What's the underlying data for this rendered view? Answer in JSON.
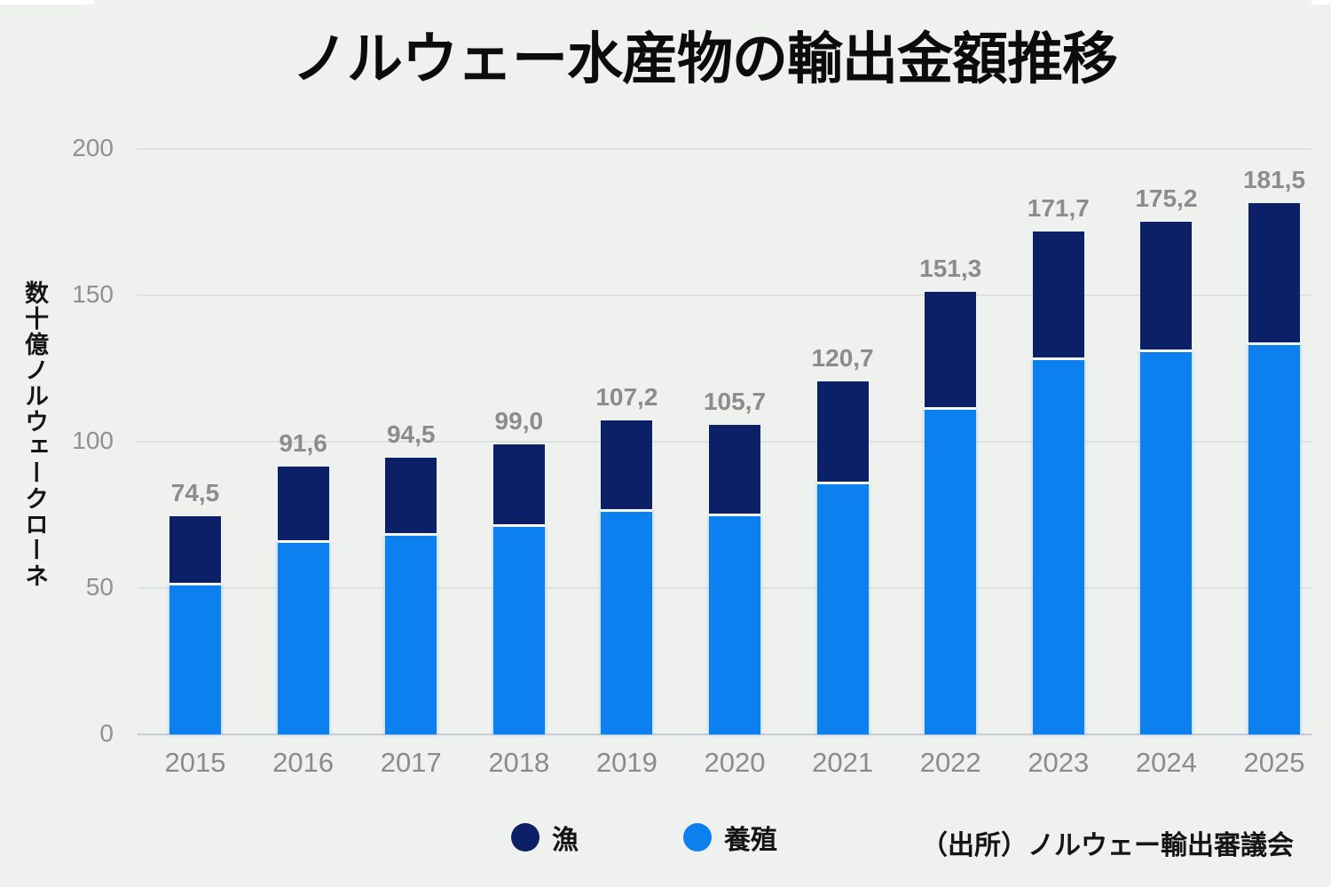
{
  "title": "ノルウェー水産物の輸出金額推移",
  "y_axis": {
    "unit_label": "数十億ノルウェークローネ",
    "ticks": [
      0,
      50,
      100,
      150,
      200
    ],
    "max": 200
  },
  "legend": [
    {
      "label": "漁",
      "color": "#0b2066"
    },
    {
      "label": "養殖",
      "color": "#0d80f0"
    }
  ],
  "source": "（出所）ノルウェー輸出審議会",
  "colors": {
    "background": "#eff1ee",
    "bar_wild_dark_navy": "#0b2066",
    "bar_farmed_light_blue": "#0d80f0",
    "value_label_gray": "#8c8c8c",
    "gridline": "#dfe1de",
    "axis_line": "#c5cbd8"
  },
  "chart_data": {
    "type": "bar",
    "stacked": true,
    "title": "ノルウェー水産物の輸出金額推移",
    "ylabel": "数十億ノルウェークローネ",
    "xlabel": "",
    "ylim": [
      0,
      200
    ],
    "grid": true,
    "legend_position": "bottom",
    "categories": [
      "2015",
      "2016",
      "2017",
      "2018",
      "2019",
      "2020",
      "2021",
      "2022",
      "2023",
      "2024",
      "2025"
    ],
    "series": [
      {
        "name": "養殖",
        "color": "#0d80f0",
        "values": [
          51,
          65.5,
          68,
          71,
          76,
          74.5,
          85.5,
          111,
          128,
          130.5,
          133
        ]
      },
      {
        "name": "漁",
        "color": "#0b2066",
        "values": [
          23.5,
          26.1,
          26.5,
          28,
          31.2,
          31.2,
          35.2,
          40.3,
          43.7,
          44.7,
          48.5
        ]
      }
    ],
    "totals": [
      74.5,
      91.6,
      94.5,
      99.0,
      107.2,
      105.7,
      120.7,
      151.3,
      171.7,
      175.2,
      181.5
    ],
    "total_labels": [
      "74,5",
      "91,6",
      "94,5",
      "99,0",
      "107,2",
      "105,7",
      "120,7",
      "151,3",
      "171,7",
      "175,2",
      "181,5"
    ]
  }
}
